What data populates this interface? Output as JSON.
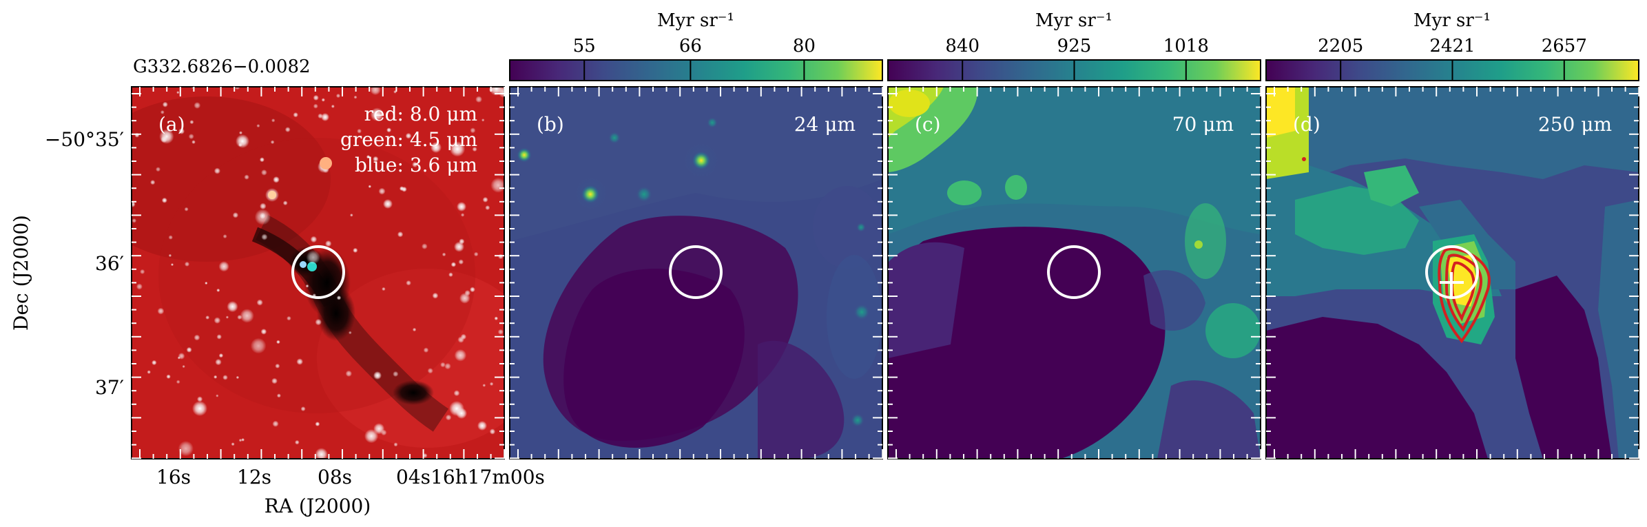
{
  "source_name": "G332.6826−0.0082",
  "panels": [
    {
      "id": "a",
      "tag": "(a)",
      "type": "rgb",
      "legend": [
        "red: 8.0 μm",
        "green: 4.5 μm",
        "blue: 3.6 μm"
      ],
      "legend_colors": {
        "red": "#cc1414",
        "green": "#2aa060",
        "blue": "#3050d0"
      }
    },
    {
      "id": "b",
      "tag": "(b)",
      "type": "map",
      "wavelength": "24 μm",
      "colorbar": {
        "unit": "Myr sr⁻¹",
        "ticks": [
          "55",
          "66",
          "80"
        ],
        "tick_fraction": [
          0.2,
          0.485,
          0.79
        ]
      }
    },
    {
      "id": "c",
      "tag": "(c)",
      "type": "map",
      "wavelength": "70 μm",
      "colorbar": {
        "unit": "Myr sr⁻¹",
        "ticks": [
          "840",
          "925",
          "1018"
        ],
        "tick_fraction": [
          0.2,
          0.5,
          0.8
        ]
      }
    },
    {
      "id": "d",
      "tag": "(d)",
      "type": "map",
      "wavelength": "250 μm",
      "colorbar": {
        "unit": "Myr sr⁻¹",
        "ticks": [
          "2205",
          "2421",
          "2657"
        ],
        "tick_fraction": [
          0.2,
          0.5,
          0.8
        ]
      }
    }
  ],
  "axes": {
    "xlabel": "RA (J2000)",
    "ylabel": "Dec (J2000)",
    "x_ticks": [
      "16s",
      "12s",
      "08s",
      "04s",
      "16h17m00s"
    ],
    "y_ticks": [
      "−50°35′",
      "36′",
      "37′"
    ]
  },
  "colormap": "viridis",
  "colors": {
    "circle": "#ffffff",
    "contour": "#d42020",
    "marker": "#ffffff"
  }
}
